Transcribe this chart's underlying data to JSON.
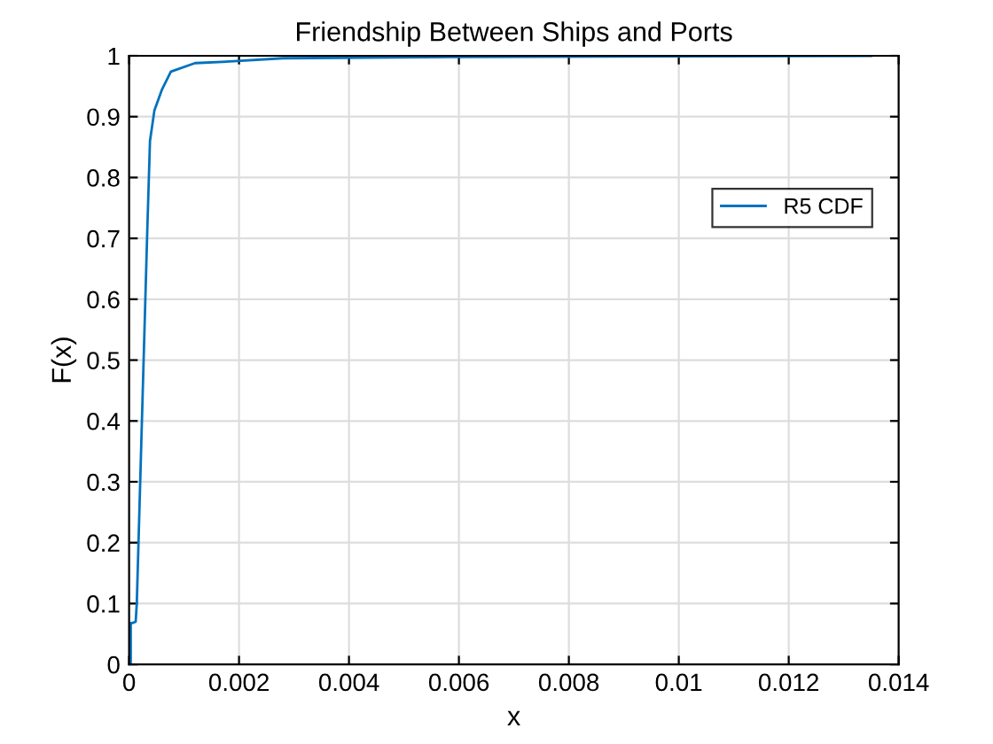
{
  "chart_data": {
    "type": "line",
    "title": "Friendship Between Ships and Ports",
    "xlabel": "x",
    "ylabel": "F(x)",
    "series": [
      {
        "name": "R5 CDF",
        "color": "#0072bd",
        "x": [
          3e-05,
          3e-05,
          6e-05,
          0.00012,
          0.00014,
          0.00033,
          0.00038,
          0.00046,
          0.0006,
          0.00076,
          0.0012,
          0.0019,
          0.0028,
          0.006,
          0.0135
        ],
        "values": [
          0,
          0.068,
          0.068,
          0.07,
          0.1,
          0.71,
          0.86,
          0.91,
          0.945,
          0.974,
          0.988,
          0.991,
          0.996,
          0.998,
          1
        ]
      }
    ],
    "xlim": [
      0,
      0.014
    ],
    "xticks": [
      0,
      0.002,
      0.004,
      0.006,
      0.008,
      0.01,
      0.012,
      0.014
    ],
    "ylim": [
      0,
      1
    ],
    "yticks": [
      0,
      0.1,
      0.2,
      0.3,
      0.4,
      0.5,
      0.6,
      0.7,
      0.8,
      0.9,
      1
    ],
    "grid": true,
    "legend": "right"
  }
}
